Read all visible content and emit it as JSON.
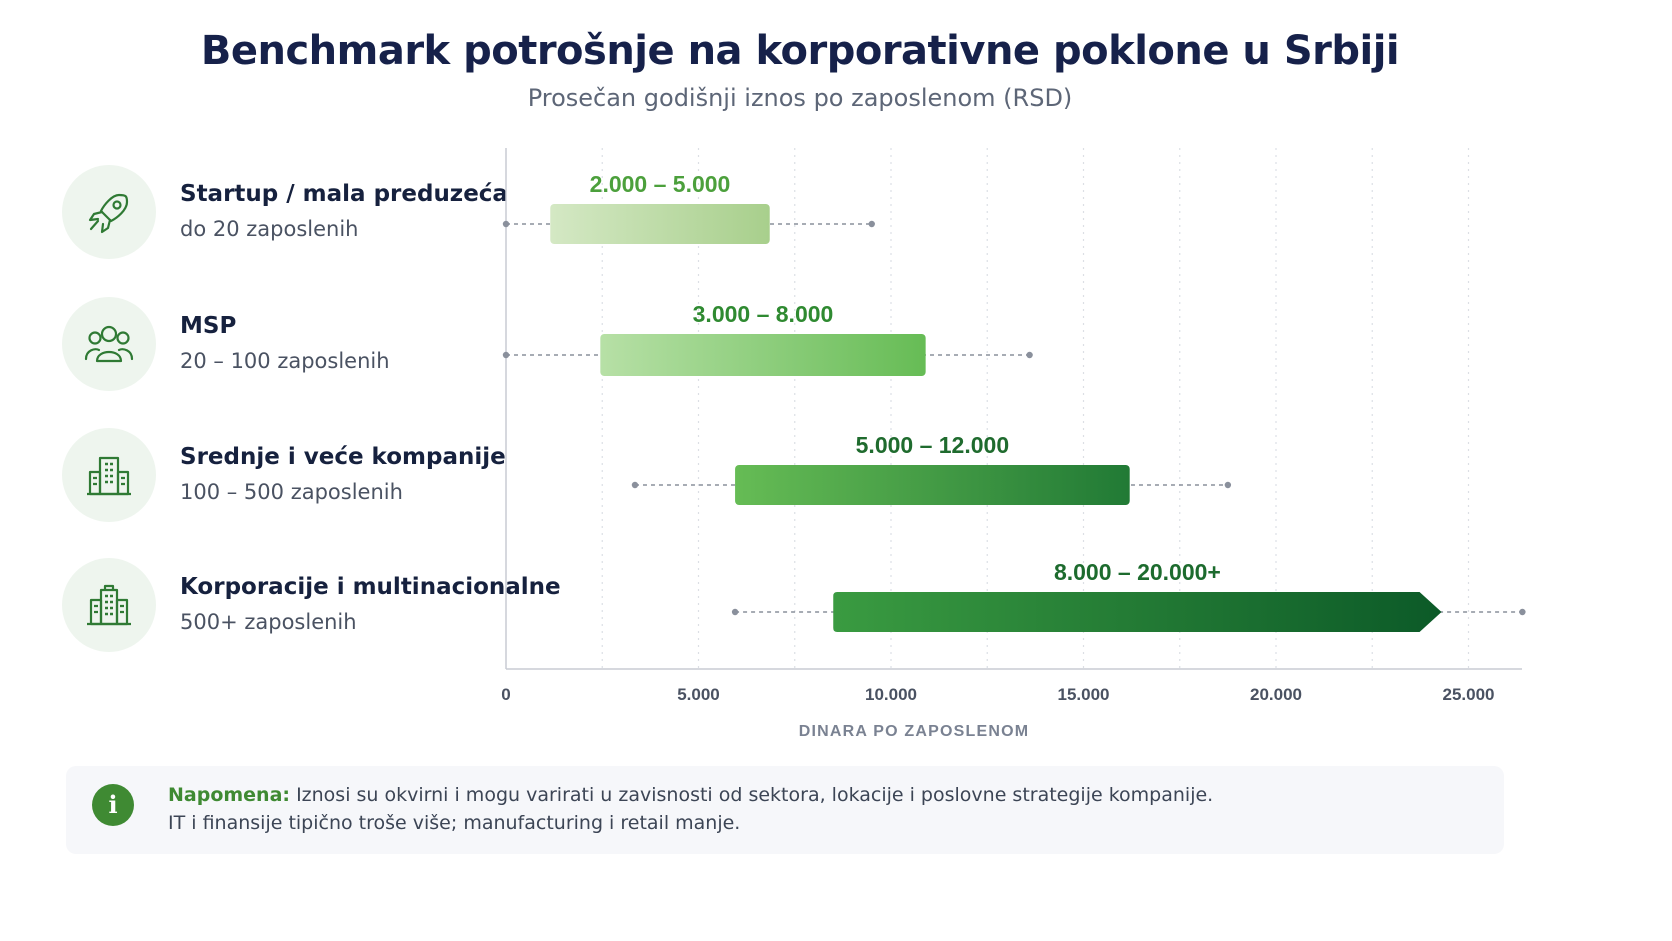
{
  "title": "Benchmark potrošnje na korporativne poklone u Srbiji",
  "subtitle": "Prosečan godišnji iznos po zaposlenom (RSD)",
  "categories": [
    {
      "name": "Startup / mala preduzeća",
      "sub": "do 20 zaposlenih",
      "icon": "rocket-icon"
    },
    {
      "name": "MSP",
      "sub": "20 – 100 zaposlenih",
      "icon": "people-icon"
    },
    {
      "name": "Srednje i veće kompanije",
      "sub": "100 – 500 zaposlenih",
      "icon": "building-icon"
    },
    {
      "name": "Korporacije i multinacionalne",
      "sub": "500+ zaposlenih",
      "icon": "corporate-building-icon"
    }
  ],
  "chart_data": {
    "type": "bar",
    "orientation": "horizontal-range",
    "xlabel": "DINARA PO ZAPOSLENOM",
    "xlim": [
      0,
      26500
    ],
    "xticks": [
      0,
      5000,
      10000,
      15000,
      20000,
      25000
    ],
    "xtick_labels": [
      "0",
      "5.000",
      "10.000",
      "15.000",
      "20.000",
      "25.000"
    ],
    "grid": "vertical-dotted",
    "series": [
      {
        "range_label": "2.000 – 5.000",
        "bar": [
          1150,
          6850
        ],
        "whisker": [
          0,
          9500
        ],
        "colors": [
          "#d4e8c4",
          "#a8cf8c"
        ],
        "label_color": "#4ca03c"
      },
      {
        "range_label": "3.000 – 8.000",
        "bar": [
          2450,
          10900
        ],
        "whisker": [
          0,
          13600
        ],
        "colors": [
          "#b7e0a6",
          "#66bc55"
        ],
        "label_color": "#2f8a31"
      },
      {
        "range_label": "5.000 – 12.000",
        "bar": [
          5950,
          16200
        ],
        "whisker": [
          3350,
          18750
        ],
        "colors": [
          "#66bc55",
          "#217a35"
        ],
        "label_color": "#1f6b2e"
      },
      {
        "range_label": "8.000 – 20.000+",
        "bar": [
          8500,
          24300
        ],
        "whisker": [
          5950,
          26400
        ],
        "arrow": true,
        "colors": [
          "#3a9b41",
          "#0c5a28"
        ],
        "label_color": "#1d6b2e"
      }
    ]
  },
  "note": {
    "label": "Napomena:",
    "line1": "Iznosi su okvirni i mogu varirati u zavisnosti od sektora, lokacije i poslovne strategije kompanije.",
    "line2": "IT i finansije tipično troše više; manufacturing i retail manje.",
    "icon_letter": "i"
  }
}
